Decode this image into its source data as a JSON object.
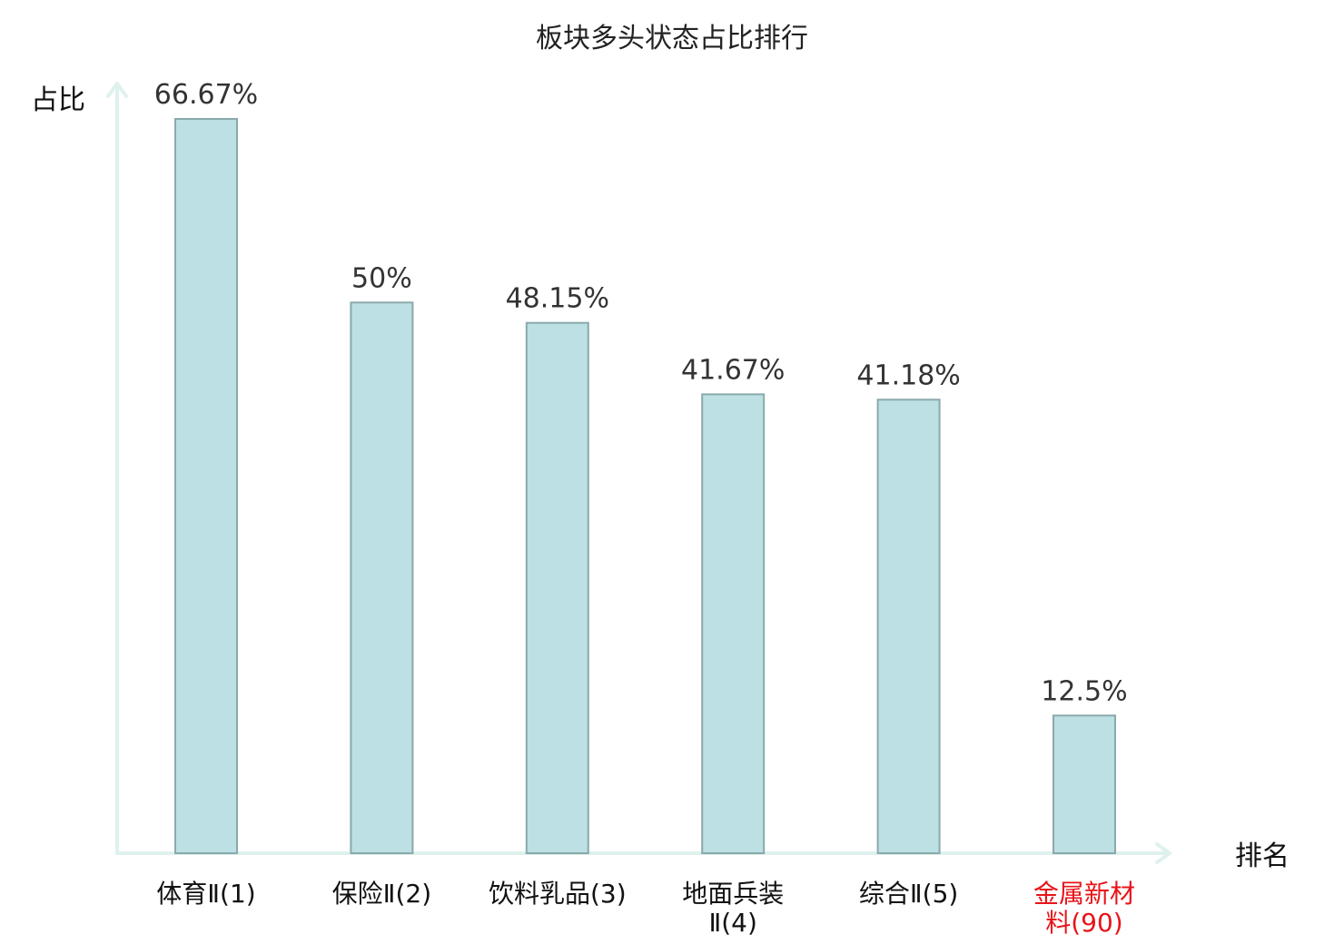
{
  "chart_data": {
    "type": "bar",
    "title": "板块多头状态占比排行",
    "ylabel": "占比",
    "xlabel": "排名",
    "categories": [
      [
        "体育Ⅱ(1)"
      ],
      [
        "保险Ⅱ(2)"
      ],
      [
        "饮料乳品(3)"
      ],
      [
        "地面兵装",
        "Ⅱ(4)"
      ],
      [
        "综合Ⅱ(5)"
      ],
      [
        "金属新材",
        "料(90)"
      ]
    ],
    "values": [
      66.67,
      50,
      48.15,
      41.67,
      41.18,
      12.5
    ],
    "value_labels": [
      "66.67%",
      "50%",
      "48.15%",
      "41.67%",
      "41.18%",
      "12.5%"
    ],
    "highlight_index": 5,
    "ylim": [
      0,
      66.67
    ],
    "grid": false,
    "colors": {
      "bar_fill": "#bce0e3",
      "bar_stroke": "#8aa9ab",
      "axis": "#dff1ee",
      "highlight_text": "#e8141a"
    }
  }
}
